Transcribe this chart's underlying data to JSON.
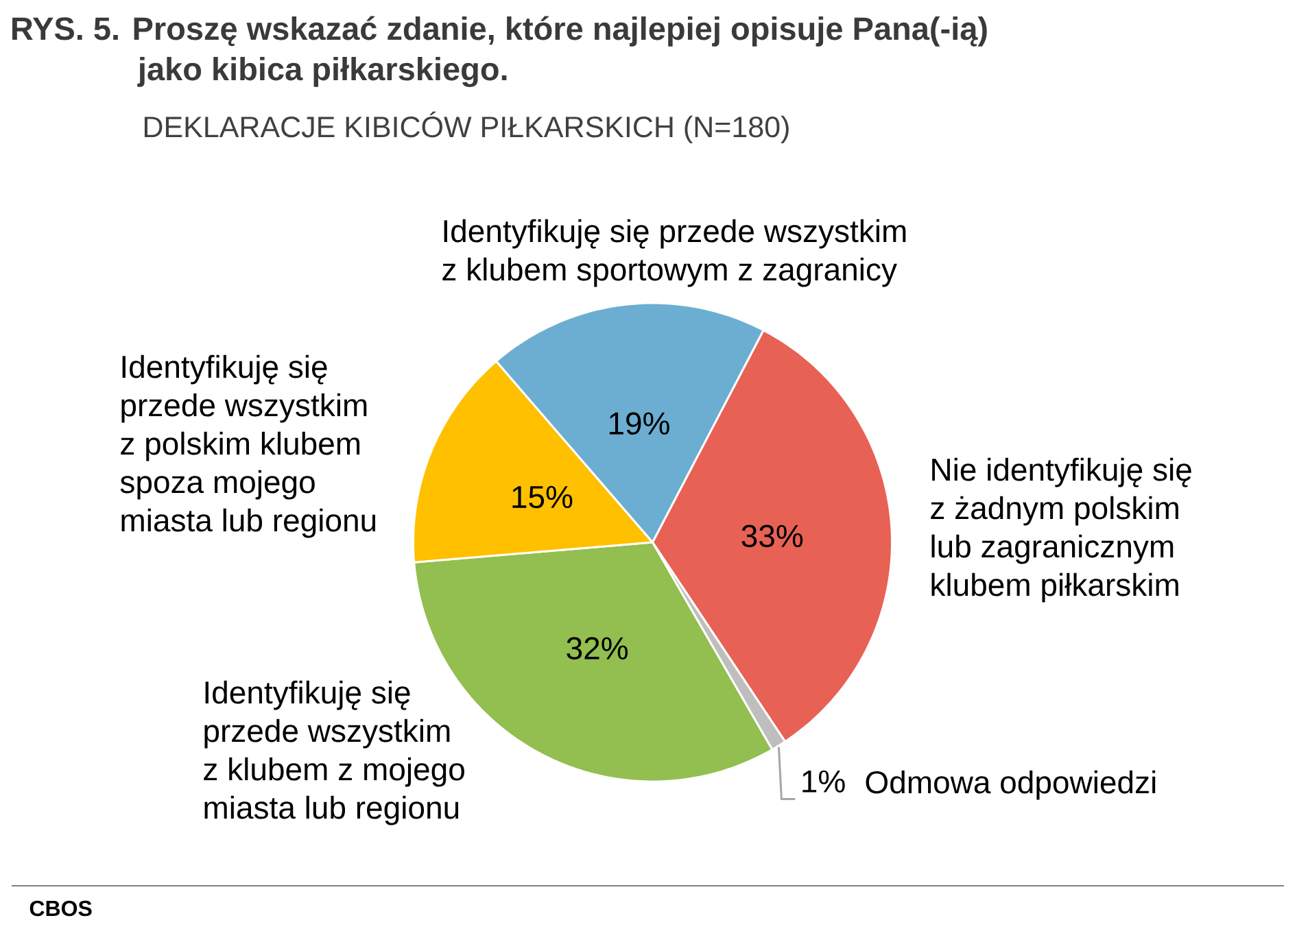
{
  "chart_data": {
    "type": "pie",
    "title": "RYS. 5. Proszę wskazać zdanie, które najlepiej opisuje Pana(-ią) jako kibica piłkarskiego.",
    "subtitle": "DEKLARACJE KIBICÓW PIŁKARSKICH (N=180)",
    "categories": [
      "Identyfikuję się przede wszystkim z klubem z mojego miasta lub regionu",
      "Identyfikuję się przede wszystkim z polskim klubem spoza mojego miasta lub regionu",
      "Identyfikuję się przede wszystkim z klubem sportowym z zagranicy",
      "Nie identyfikuję się z żadnym polskim lub zagranicznym klubem piłkarskim",
      "Odmowa odpowiedzi"
    ],
    "values": [
      32,
      15,
      19,
      33,
      1
    ],
    "colors": [
      "#93BE50",
      "#FFC000",
      "#6BAED2",
      "#E86155",
      "#BEBEBE"
    ],
    "value_labels": [
      "32%",
      "15%",
      "19%",
      "33%",
      "1%"
    ],
    "annotations": [
      "CBOS"
    ]
  }
}
